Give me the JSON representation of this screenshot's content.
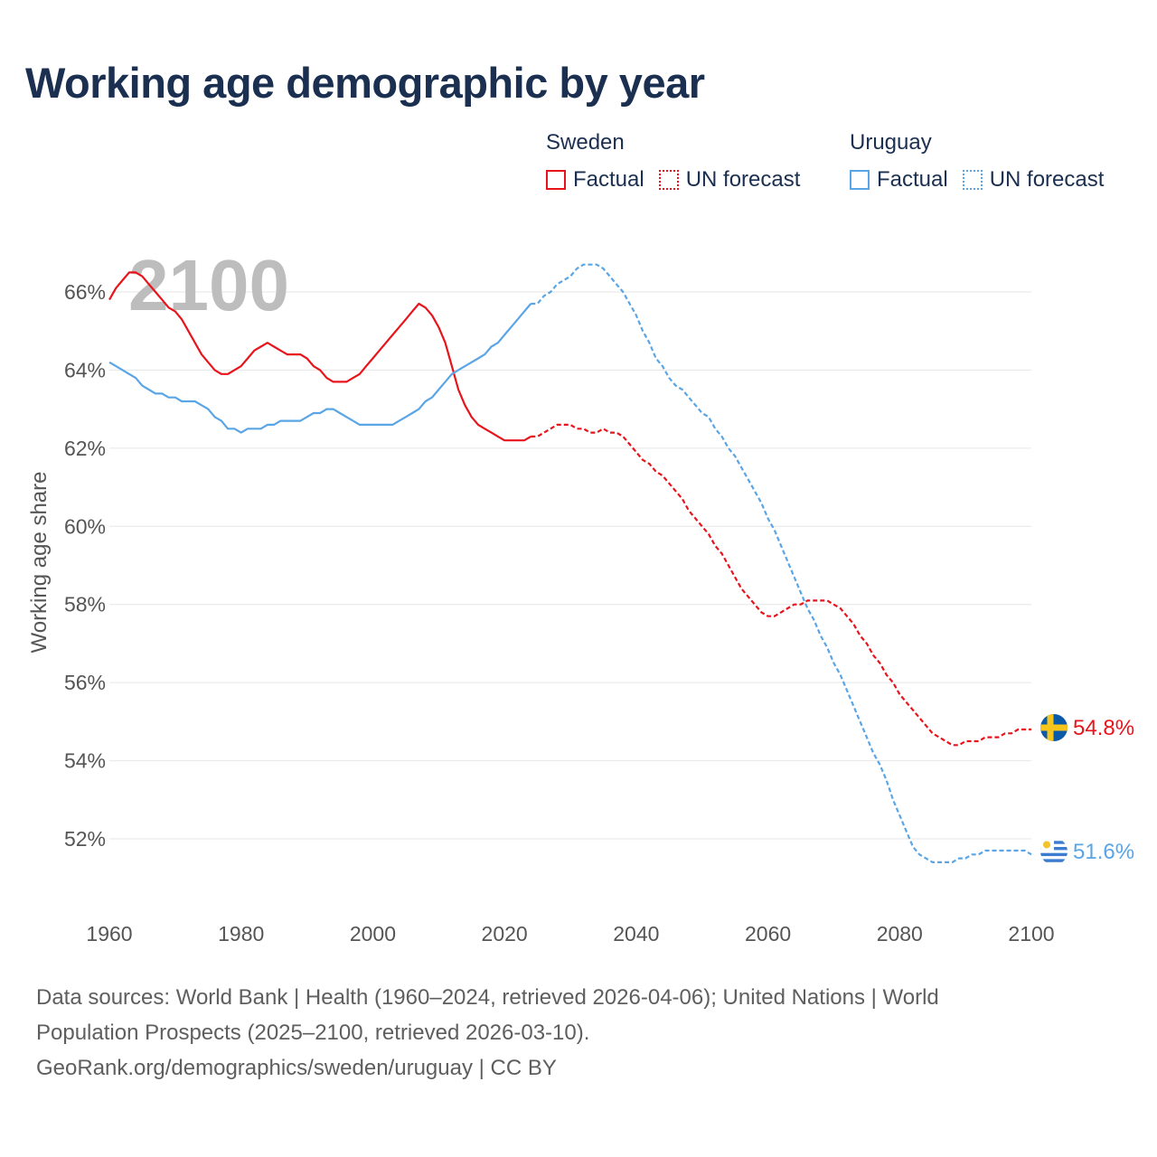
{
  "title": "Working age demographic by year",
  "legend": {
    "groups": [
      {
        "name": "Sweden",
        "color": "#e8141c",
        "factual_label": "Factual",
        "forecast_label": "UN forecast"
      },
      {
        "name": "Uruguay",
        "color": "#5aa5e6",
        "factual_label": "Factual",
        "forecast_label": "UN forecast"
      }
    ]
  },
  "colors": {
    "sweden": "#e8141c",
    "uruguay": "#5aa5e6",
    "grid": "#e6e6e6",
    "title": "#1b2f50"
  },
  "year_stamp": "2100",
  "end_labels": {
    "sweden": "54.8%",
    "uruguay": "51.6%"
  },
  "flags": {
    "sweden": "sweden-flag-icon",
    "uruguay": "uruguay-flag-icon"
  },
  "footer": {
    "line1": "Data sources: World Bank | Health (1960–2024, retrieved 2026-04-06); United Nations | World",
    "line2": "Population Prospects (2025–2100, retrieved 2026-03-10).",
    "line3": "GeoRank.org/demographics/sweden/uruguay | CC BY"
  },
  "chart_data": {
    "type": "line",
    "title": "Working age demographic by year",
    "xlabel": "",
    "ylabel": "Working age share",
    "xlim": [
      1960,
      2100
    ],
    "ylim": [
      50.5,
      67.2
    ],
    "xticks": [
      1960,
      1980,
      2000,
      2020,
      2040,
      2060,
      2080,
      2100
    ],
    "yticks": [
      52,
      54,
      56,
      58,
      60,
      62,
      64,
      66
    ],
    "ytick_labels": [
      "52%",
      "54%",
      "56%",
      "58%",
      "60%",
      "62%",
      "64%",
      "66%"
    ],
    "factual_end_year": 2024,
    "series": [
      {
        "name": "Sweden",
        "factual": [
          [
            1960,
            65.8
          ],
          [
            1961,
            66.1
          ],
          [
            1962,
            66.3
          ],
          [
            1963,
            66.5
          ],
          [
            1964,
            66.5
          ],
          [
            1965,
            66.4
          ],
          [
            1966,
            66.2
          ],
          [
            1967,
            66.0
          ],
          [
            1968,
            65.8
          ],
          [
            1969,
            65.6
          ],
          [
            1970,
            65.5
          ],
          [
            1971,
            65.3
          ],
          [
            1972,
            65.0
          ],
          [
            1973,
            64.7
          ],
          [
            1974,
            64.4
          ],
          [
            1975,
            64.2
          ],
          [
            1976,
            64.0
          ],
          [
            1977,
            63.9
          ],
          [
            1978,
            63.9
          ],
          [
            1979,
            64.0
          ],
          [
            1980,
            64.1
          ],
          [
            1981,
            64.3
          ],
          [
            1982,
            64.5
          ],
          [
            1983,
            64.6
          ],
          [
            1984,
            64.7
          ],
          [
            1985,
            64.6
          ],
          [
            1986,
            64.5
          ],
          [
            1987,
            64.4
          ],
          [
            1988,
            64.4
          ],
          [
            1989,
            64.4
          ],
          [
            1990,
            64.3
          ],
          [
            1991,
            64.1
          ],
          [
            1992,
            64.0
          ],
          [
            1993,
            63.8
          ],
          [
            1994,
            63.7
          ],
          [
            1995,
            63.7
          ],
          [
            1996,
            63.7
          ],
          [
            1997,
            63.8
          ],
          [
            1998,
            63.9
          ],
          [
            1999,
            64.1
          ],
          [
            2000,
            64.3
          ],
          [
            2001,
            64.5
          ],
          [
            2002,
            64.7
          ],
          [
            2003,
            64.9
          ],
          [
            2004,
            65.1
          ],
          [
            2005,
            65.3
          ],
          [
            2006,
            65.5
          ],
          [
            2007,
            65.7
          ],
          [
            2008,
            65.6
          ],
          [
            2009,
            65.4
          ],
          [
            2010,
            65.1
          ],
          [
            2011,
            64.7
          ],
          [
            2012,
            64.1
          ],
          [
            2013,
            63.5
          ],
          [
            2014,
            63.1
          ],
          [
            2015,
            62.8
          ],
          [
            2016,
            62.6
          ],
          [
            2017,
            62.5
          ],
          [
            2018,
            62.4
          ],
          [
            2019,
            62.3
          ],
          [
            2020,
            62.2
          ],
          [
            2021,
            62.2
          ],
          [
            2022,
            62.2
          ],
          [
            2023,
            62.2
          ],
          [
            2024,
            62.3
          ]
        ],
        "forecast": [
          [
            2024,
            62.3
          ],
          [
            2025,
            62.3
          ],
          [
            2026,
            62.4
          ],
          [
            2027,
            62.5
          ],
          [
            2028,
            62.6
          ],
          [
            2029,
            62.6
          ],
          [
            2030,
            62.6
          ],
          [
            2031,
            62.5
          ],
          [
            2032,
            62.5
          ],
          [
            2033,
            62.4
          ],
          [
            2034,
            62.4
          ],
          [
            2035,
            62.5
          ],
          [
            2036,
            62.4
          ],
          [
            2037,
            62.4
          ],
          [
            2038,
            62.3
          ],
          [
            2039,
            62.1
          ],
          [
            2040,
            61.9
          ],
          [
            2041,
            61.7
          ],
          [
            2042,
            61.6
          ],
          [
            2043,
            61.4
          ],
          [
            2044,
            61.3
          ],
          [
            2045,
            61.1
          ],
          [
            2046,
            60.9
          ],
          [
            2047,
            60.7
          ],
          [
            2048,
            60.4
          ],
          [
            2049,
            60.2
          ],
          [
            2050,
            60.0
          ],
          [
            2051,
            59.8
          ],
          [
            2052,
            59.5
          ],
          [
            2053,
            59.3
          ],
          [
            2054,
            59.0
          ],
          [
            2055,
            58.7
          ],
          [
            2056,
            58.4
          ],
          [
            2057,
            58.2
          ],
          [
            2058,
            58.0
          ],
          [
            2059,
            57.8
          ],
          [
            2060,
            57.7
          ],
          [
            2061,
            57.7
          ],
          [
            2062,
            57.8
          ],
          [
            2063,
            57.9
          ],
          [
            2064,
            58.0
          ],
          [
            2065,
            58.0
          ],
          [
            2066,
            58.1
          ],
          [
            2067,
            58.1
          ],
          [
            2068,
            58.1
          ],
          [
            2069,
            58.1
          ],
          [
            2070,
            58.0
          ],
          [
            2071,
            57.9
          ],
          [
            2072,
            57.7
          ],
          [
            2073,
            57.5
          ],
          [
            2074,
            57.2
          ],
          [
            2075,
            57.0
          ],
          [
            2076,
            56.7
          ],
          [
            2077,
            56.5
          ],
          [
            2078,
            56.2
          ],
          [
            2079,
            56.0
          ],
          [
            2080,
            55.7
          ],
          [
            2081,
            55.5
          ],
          [
            2082,
            55.3
          ],
          [
            2083,
            55.1
          ],
          [
            2084,
            54.9
          ],
          [
            2085,
            54.7
          ],
          [
            2086,
            54.6
          ],
          [
            2087,
            54.5
          ],
          [
            2088,
            54.4
          ],
          [
            2089,
            54.4
          ],
          [
            2090,
            54.5
          ],
          [
            2091,
            54.5
          ],
          [
            2092,
            54.5
          ],
          [
            2093,
            54.6
          ],
          [
            2094,
            54.6
          ],
          [
            2095,
            54.6
          ],
          [
            2096,
            54.7
          ],
          [
            2097,
            54.7
          ],
          [
            2098,
            54.8
          ],
          [
            2099,
            54.8
          ],
          [
            2100,
            54.8
          ]
        ]
      },
      {
        "name": "Uruguay",
        "factual": [
          [
            1960,
            64.2
          ],
          [
            1961,
            64.1
          ],
          [
            1962,
            64.0
          ],
          [
            1963,
            63.9
          ],
          [
            1964,
            63.8
          ],
          [
            1965,
            63.6
          ],
          [
            1966,
            63.5
          ],
          [
            1967,
            63.4
          ],
          [
            1968,
            63.4
          ],
          [
            1969,
            63.3
          ],
          [
            1970,
            63.3
          ],
          [
            1971,
            63.2
          ],
          [
            1972,
            63.2
          ],
          [
            1973,
            63.2
          ],
          [
            1974,
            63.1
          ],
          [
            1975,
            63.0
          ],
          [
            1976,
            62.8
          ],
          [
            1977,
            62.7
          ],
          [
            1978,
            62.5
          ],
          [
            1979,
            62.5
          ],
          [
            1980,
            62.4
          ],
          [
            1981,
            62.5
          ],
          [
            1982,
            62.5
          ],
          [
            1983,
            62.5
          ],
          [
            1984,
            62.6
          ],
          [
            1985,
            62.6
          ],
          [
            1986,
            62.7
          ],
          [
            1987,
            62.7
          ],
          [
            1988,
            62.7
          ],
          [
            1989,
            62.7
          ],
          [
            1990,
            62.8
          ],
          [
            1991,
            62.9
          ],
          [
            1992,
            62.9
          ],
          [
            1993,
            63.0
          ],
          [
            1994,
            63.0
          ],
          [
            1995,
            62.9
          ],
          [
            1996,
            62.8
          ],
          [
            1997,
            62.7
          ],
          [
            1998,
            62.6
          ],
          [
            1999,
            62.6
          ],
          [
            2000,
            62.6
          ],
          [
            2001,
            62.6
          ],
          [
            2002,
            62.6
          ],
          [
            2003,
            62.6
          ],
          [
            2004,
            62.7
          ],
          [
            2005,
            62.8
          ],
          [
            2006,
            62.9
          ],
          [
            2007,
            63.0
          ],
          [
            2008,
            63.2
          ],
          [
            2009,
            63.3
          ],
          [
            2010,
            63.5
          ],
          [
            2011,
            63.7
          ],
          [
            2012,
            63.9
          ],
          [
            2013,
            64.0
          ],
          [
            2014,
            64.1
          ],
          [
            2015,
            64.2
          ],
          [
            2016,
            64.3
          ],
          [
            2017,
            64.4
          ],
          [
            2018,
            64.6
          ],
          [
            2019,
            64.7
          ],
          [
            2020,
            64.9
          ],
          [
            2021,
            65.1
          ],
          [
            2022,
            65.3
          ],
          [
            2023,
            65.5
          ],
          [
            2024,
            65.7
          ]
        ],
        "forecast": [
          [
            2024,
            65.7
          ],
          [
            2025,
            65.7
          ],
          [
            2026,
            65.9
          ],
          [
            2027,
            66.0
          ],
          [
            2028,
            66.2
          ],
          [
            2029,
            66.3
          ],
          [
            2030,
            66.4
          ],
          [
            2031,
            66.6
          ],
          [
            2032,
            66.7
          ],
          [
            2033,
            66.7
          ],
          [
            2034,
            66.7
          ],
          [
            2035,
            66.6
          ],
          [
            2036,
            66.4
          ],
          [
            2037,
            66.2
          ],
          [
            2038,
            66.0
          ],
          [
            2039,
            65.7
          ],
          [
            2040,
            65.4
          ],
          [
            2041,
            65.0
          ],
          [
            2042,
            64.7
          ],
          [
            2043,
            64.3
          ],
          [
            2044,
            64.1
          ],
          [
            2045,
            63.8
          ],
          [
            2046,
            63.6
          ],
          [
            2047,
            63.5
          ],
          [
            2048,
            63.3
          ],
          [
            2049,
            63.1
          ],
          [
            2050,
            62.9
          ],
          [
            2051,
            62.8
          ],
          [
            2052,
            62.5
          ],
          [
            2053,
            62.3
          ],
          [
            2054,
            62.0
          ],
          [
            2055,
            61.8
          ],
          [
            2056,
            61.5
          ],
          [
            2057,
            61.2
          ],
          [
            2058,
            60.9
          ],
          [
            2059,
            60.6
          ],
          [
            2060,
            60.2
          ],
          [
            2061,
            59.9
          ],
          [
            2062,
            59.5
          ],
          [
            2063,
            59.1
          ],
          [
            2064,
            58.7
          ],
          [
            2065,
            58.3
          ],
          [
            2066,
            57.9
          ],
          [
            2067,
            57.6
          ],
          [
            2068,
            57.2
          ],
          [
            2069,
            56.9
          ],
          [
            2070,
            56.5
          ],
          [
            2071,
            56.2
          ],
          [
            2072,
            55.8
          ],
          [
            2073,
            55.4
          ],
          [
            2074,
            55.0
          ],
          [
            2075,
            54.6
          ],
          [
            2076,
            54.2
          ],
          [
            2077,
            53.9
          ],
          [
            2078,
            53.5
          ],
          [
            2079,
            53.0
          ],
          [
            2080,
            52.6
          ],
          [
            2081,
            52.2
          ],
          [
            2082,
            51.8
          ],
          [
            2083,
            51.6
          ],
          [
            2084,
            51.5
          ],
          [
            2085,
            51.4
          ],
          [
            2086,
            51.4
          ],
          [
            2087,
            51.4
          ],
          [
            2088,
            51.4
          ],
          [
            2089,
            51.5
          ],
          [
            2090,
            51.5
          ],
          [
            2091,
            51.6
          ],
          [
            2092,
            51.6
          ],
          [
            2093,
            51.7
          ],
          [
            2094,
            51.7
          ],
          [
            2095,
            51.7
          ],
          [
            2096,
            51.7
          ],
          [
            2097,
            51.7
          ],
          [
            2098,
            51.7
          ],
          [
            2099,
            51.7
          ],
          [
            2100,
            51.6
          ]
        ]
      }
    ]
  }
}
